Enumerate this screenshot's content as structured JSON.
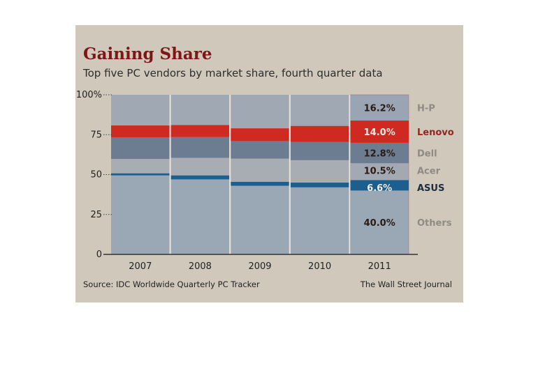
{
  "chart_data": {
    "type": "bar",
    "stacked": true,
    "title": "Gaining Share",
    "subtitle": "Top five PC vendors by market share, fourth quarter data",
    "categories": [
      "2007",
      "2008",
      "2009",
      "2010",
      "2011"
    ],
    "ylim": [
      0,
      100
    ],
    "yticks": [
      "0",
      "25",
      "50",
      "75",
      "100%"
    ],
    "ytick_values": [
      0,
      25,
      50,
      75,
      100
    ],
    "series": [
      {
        "name": "Others",
        "values": [
          49.5,
          47,
          43,
          42,
          40.0
        ],
        "color": "#9aa7b5"
      },
      {
        "name": "ASUS",
        "values": [
          1.3,
          2.5,
          2.5,
          3.0,
          6.6
        ],
        "color": "#1c5f8e"
      },
      {
        "name": "Acer",
        "values": [
          9.0,
          11.0,
          14.5,
          14.0,
          10.5
        ],
        "color": "#a3a9b3"
      },
      {
        "name": "Dell",
        "values": [
          13.5,
          13.0,
          11.0,
          11.5,
          12.8
        ],
        "color": "#6d7d91"
      },
      {
        "name": "Lenovo",
        "values": [
          7.5,
          7.5,
          8.0,
          10.0,
          14.0
        ],
        "color": "#cf2a22"
      },
      {
        "name": "H-P",
        "values": [
          19.2,
          19.0,
          21.0,
          19.5,
          16.2
        ],
        "color": "#9aa5b3"
      }
    ],
    "labels_2011": [
      {
        "pct": "16.2%",
        "vendor": "H-P"
      },
      {
        "pct": "14.0%",
        "vendor": "Lenovo"
      },
      {
        "pct": "12.8%",
        "vendor": "Dell"
      },
      {
        "pct": "10.5%",
        "vendor": "Acer"
      },
      {
        "pct": "6.6%",
        "vendor": "ASUS"
      },
      {
        "pct": "40.0%",
        "vendor": "Others"
      }
    ],
    "source": "Source: IDC Worldwide Quarterly PC Tracker",
    "credit": "The Wall Street Journal",
    "grid": true
  }
}
